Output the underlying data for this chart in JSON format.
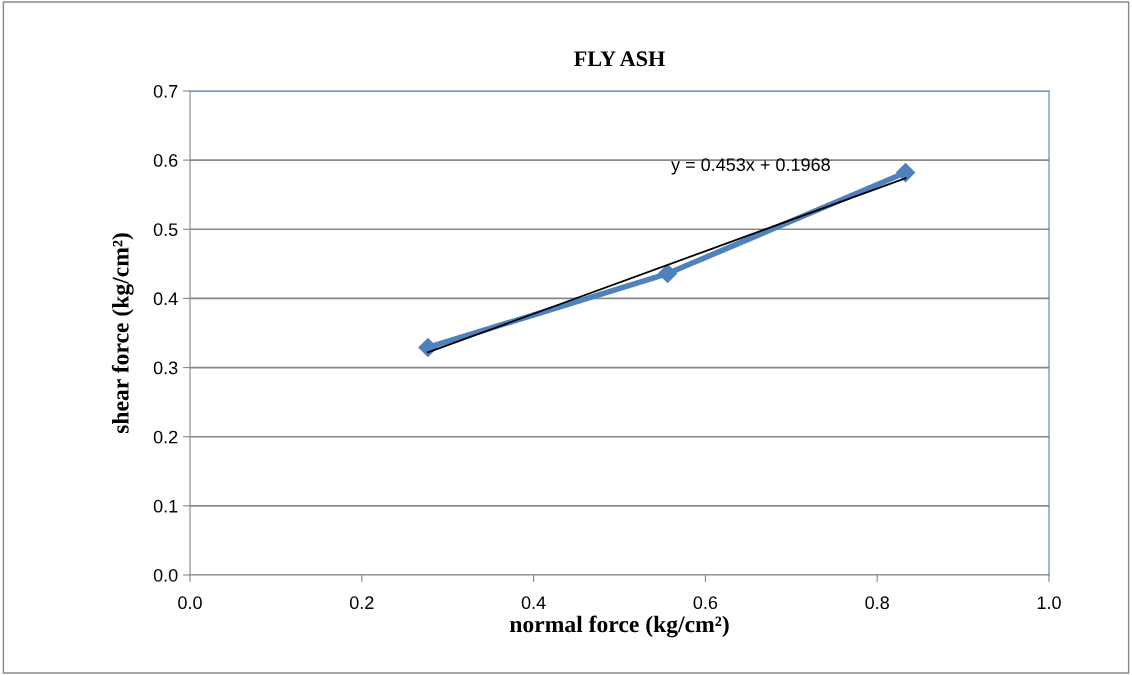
{
  "chart_data": {
    "type": "line",
    "title": "FLY ASH",
    "xlabel": "normal force (kg/cm²)",
    "ylabel": "shear force (kg/cm²)",
    "series": [
      {
        "color": "#4f81bd",
        "x": [
          0.277,
          0.556,
          0.833
        ],
        "values": [
          0.329,
          0.436,
          0.582
        ],
        "marker": "diamond"
      },
      {
        "color": "#000000",
        "x": [
          0.277,
          0.833
        ],
        "values": [
          0.322,
          0.574
        ],
        "marker": "none"
      }
    ],
    "annotations": [
      "y = 0.453x + 0.1968"
    ],
    "xlim": [
      0.0,
      1.0
    ],
    "xticks": [
      {
        "value": 0.0,
        "label": "0.0"
      },
      0.2,
      0.4,
      0.6,
      0.8,
      {
        "value": 1.0,
        "label": "1.0"
      }
    ],
    "ylim": [
      0.0,
      0.7
    ],
    "yticks": [
      {
        "value": 0.0,
        "label": "0.0"
      },
      0.1,
      0.2,
      0.3,
      0.4,
      0.5,
      0.6,
      0.7
    ],
    "grid": "y",
    "legend": false,
    "line_style": "solid"
  }
}
